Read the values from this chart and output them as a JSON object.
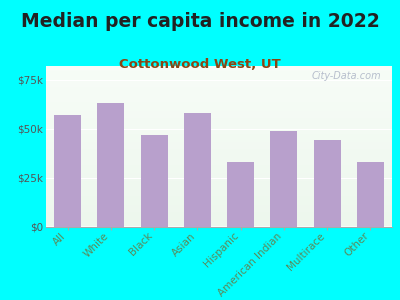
{
  "title": "Median per capita income in 2022",
  "subtitle": "Cottonwood West, UT",
  "categories": [
    "All",
    "White",
    "Black",
    "Asian",
    "Hispanic",
    "American Indian",
    "Multirace",
    "Other"
  ],
  "values": [
    57000,
    63000,
    47000,
    58000,
    33000,
    49000,
    44000,
    33000
  ],
  "bar_color": "#b8a0cc",
  "background_color": "#00ffff",
  "plot_bg_color": "#eef6ee",
  "title_color": "#222222",
  "subtitle_color": "#8B4513",
  "ytick_color": "#555555",
  "xlabel_color": "#5a8a5a",
  "ytick_labels": [
    "$0",
    "$25k",
    "$50k",
    "$75k"
  ],
  "ytick_values": [
    0,
    25000,
    50000,
    75000
  ],
  "ylim": [
    0,
    82000
  ],
  "title_fontsize": 13.5,
  "subtitle_fontsize": 9.5,
  "ytick_fontsize": 7.5,
  "xlabel_fontsize": 7.5,
  "watermark_text": "City-Data.com",
  "watermark_color": "#b0b8c8",
  "watermark_fontsize": 7
}
